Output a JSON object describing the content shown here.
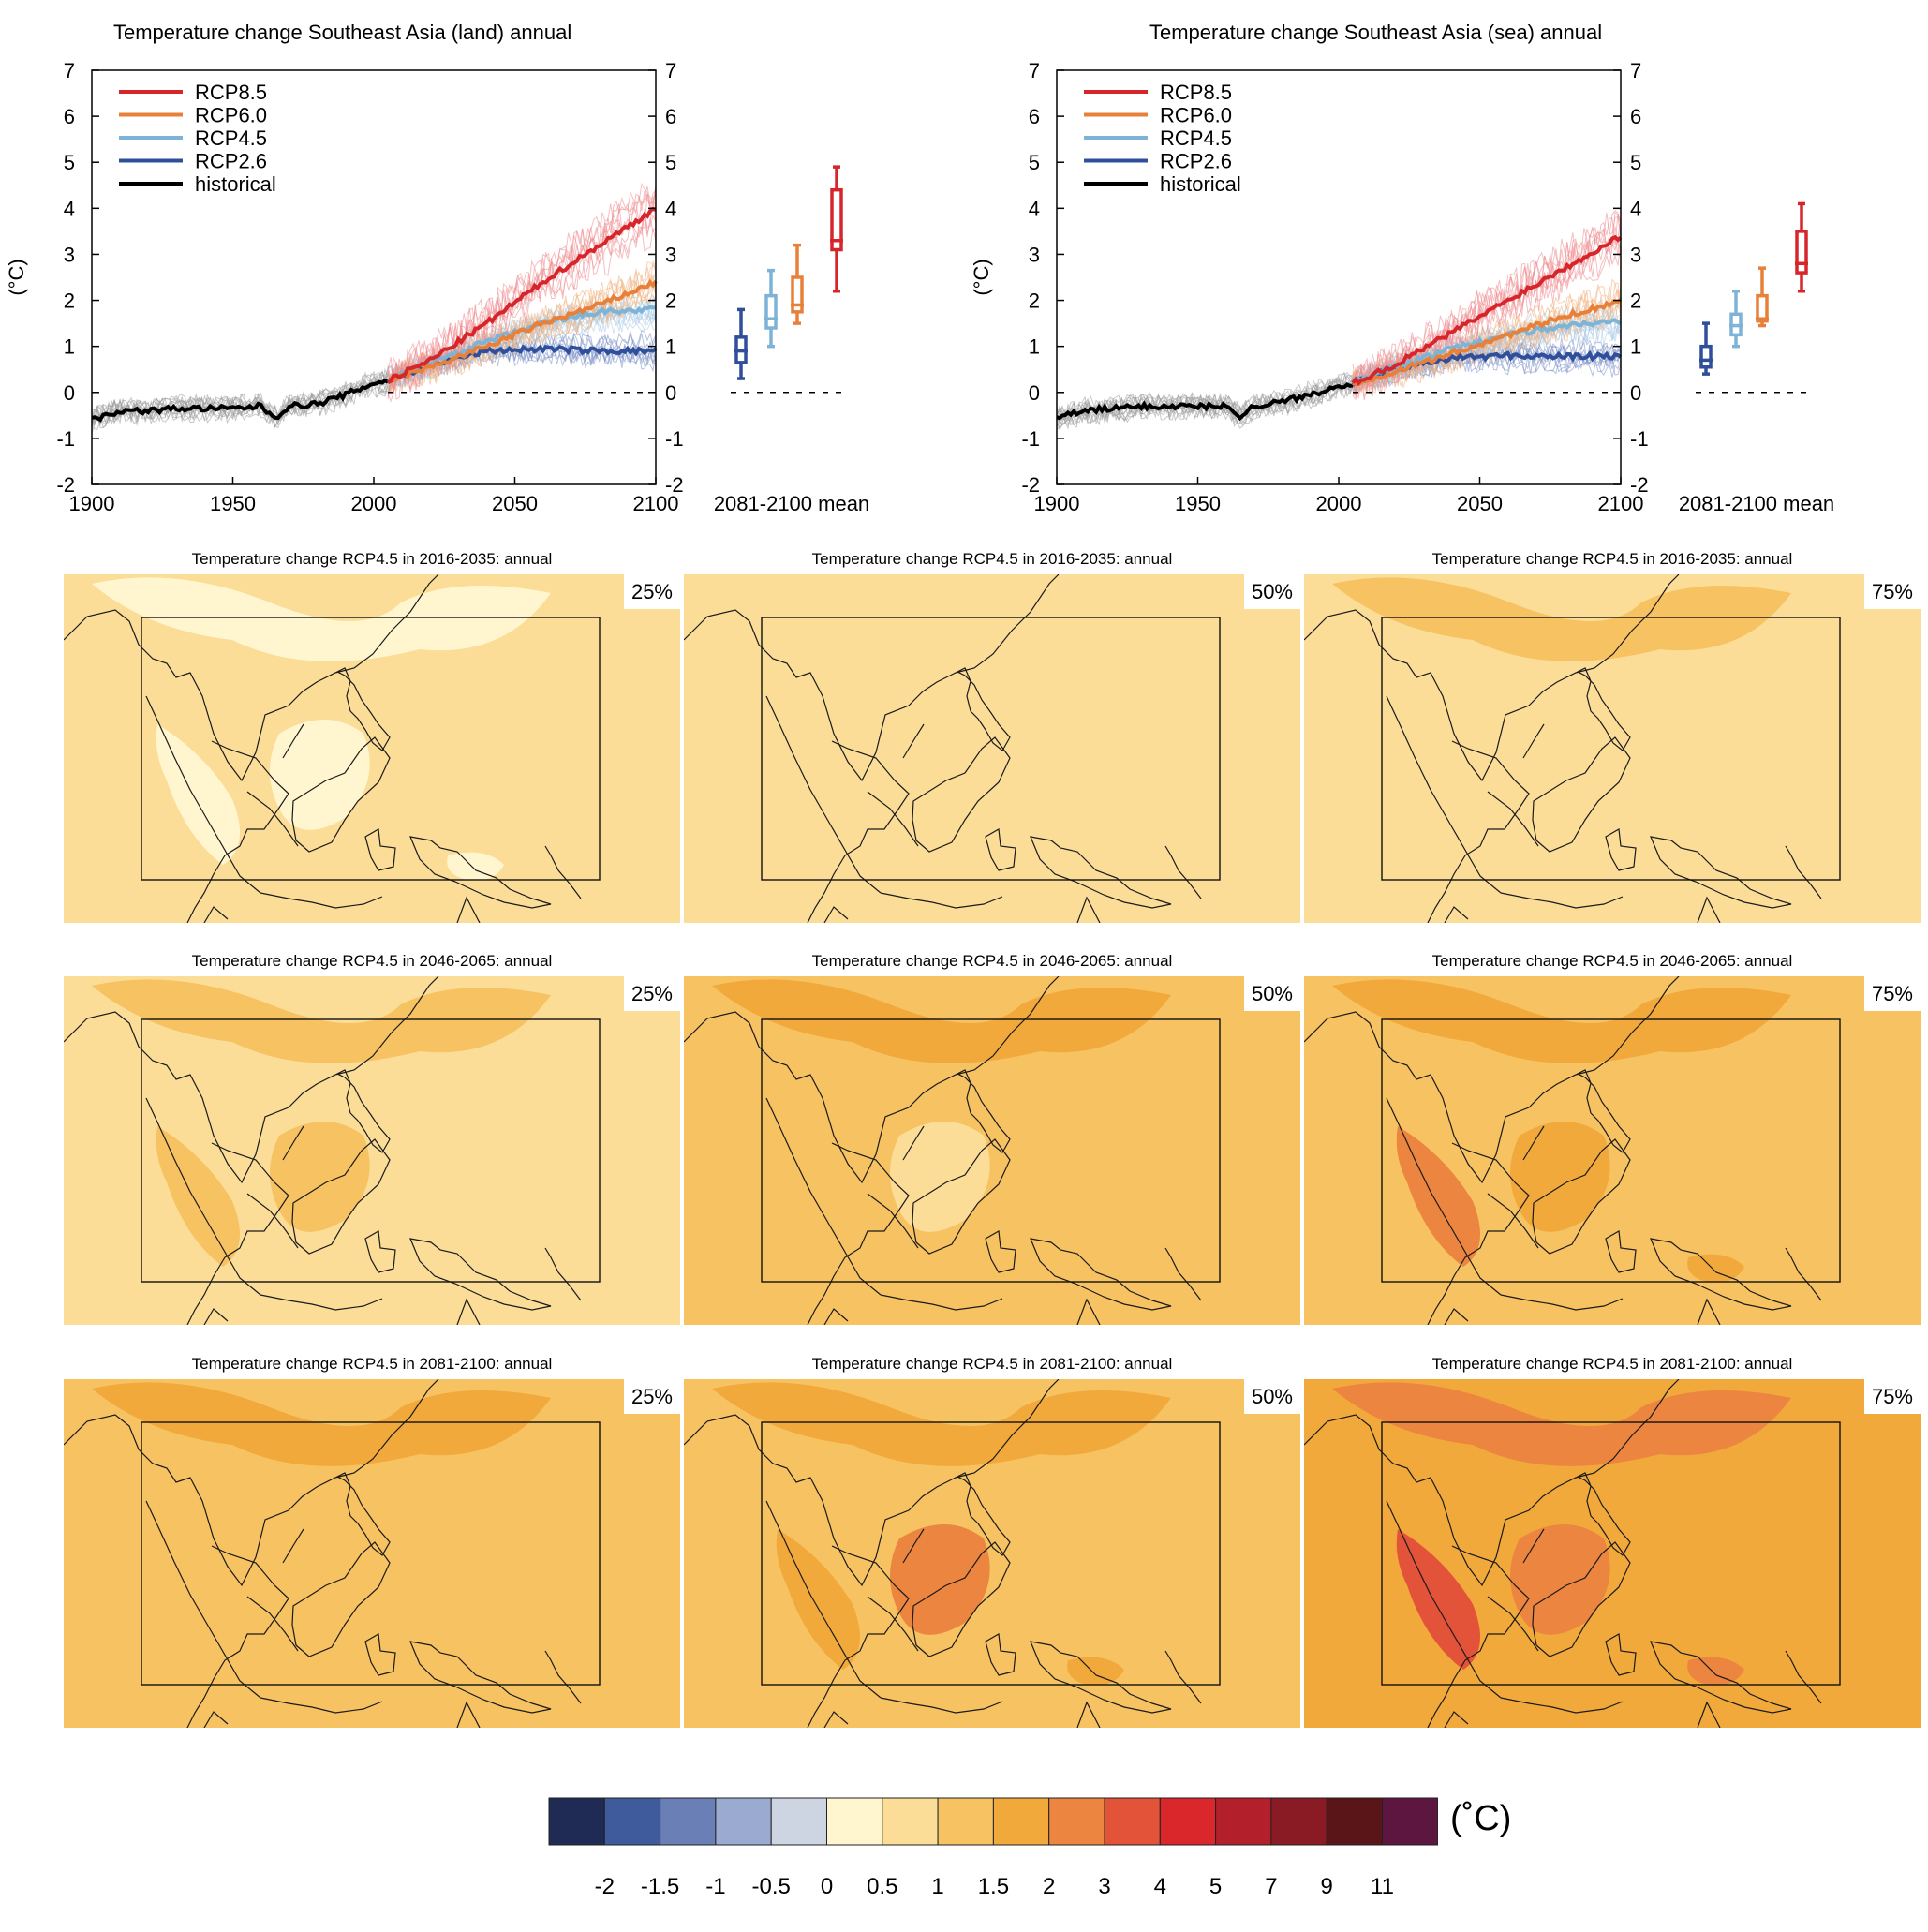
{
  "chart_data": [
    {
      "type": "line",
      "title": "Temperature change Southeast Asia (land) annual",
      "ylabel": "(°C)",
      "xlim": [
        1900,
        2100
      ],
      "ylim": [
        -2,
        7
      ],
      "xticks": [
        "1900",
        "1950",
        "2000",
        "2050",
        "2100"
      ],
      "yticks": [
        "-2",
        "-1",
        "0",
        "1",
        "2",
        "3",
        "4",
        "5",
        "6",
        "7"
      ],
      "legend": [
        "RCP8.5",
        "RCP6.0",
        "RCP4.5",
        "RCP2.6",
        "historical"
      ],
      "legend_position": "top-left",
      "colors": {
        "RCP8.5": "#d7262b",
        "RCP6.0": "#e8803a",
        "RCP4.5": "#7eb3d8",
        "RCP2.6": "#2f4f9a",
        "historical": "#000000"
      },
      "series": [
        {
          "name": "historical",
          "x": [
            1900,
            1910,
            1920,
            1930,
            1940,
            1950,
            1960,
            1965,
            1970,
            1980,
            1990,
            2000,
            2005
          ],
          "values": [
            -0.6,
            -0.4,
            -0.4,
            -0.35,
            -0.35,
            -0.35,
            -0.3,
            -0.55,
            -0.3,
            -0.25,
            -0.05,
            0.2,
            0.25
          ]
        },
        {
          "name": "RCP8.5",
          "x": [
            2005,
            2020,
            2040,
            2060,
            2080,
            2100
          ],
          "values": [
            0.25,
            0.7,
            1.5,
            2.4,
            3.2,
            4.0
          ]
        },
        {
          "name": "RCP6.0",
          "x": [
            2005,
            2020,
            2040,
            2060,
            2080,
            2100
          ],
          "values": [
            0.25,
            0.55,
            1.0,
            1.5,
            1.9,
            2.4
          ]
        },
        {
          "name": "RCP4.5",
          "x": [
            2005,
            2020,
            2040,
            2060,
            2080,
            2100
          ],
          "values": [
            0.25,
            0.65,
            1.1,
            1.5,
            1.75,
            1.8
          ]
        },
        {
          "name": "RCP2.6",
          "x": [
            2005,
            2020,
            2040,
            2060,
            2080,
            2100
          ],
          "values": [
            0.25,
            0.6,
            0.9,
            0.95,
            0.9,
            0.9
          ]
        }
      ],
      "boxplot_label": "2081-2100 mean",
      "boxplots": [
        {
          "name": "RCP2.6",
          "min": 0.3,
          "q1": 0.65,
          "median": 0.9,
          "q3": 1.2,
          "max": 1.8
        },
        {
          "name": "RCP4.5",
          "min": 1.0,
          "q1": 1.4,
          "median": 1.6,
          "q3": 2.1,
          "max": 2.65
        },
        {
          "name": "RCP6.0",
          "min": 1.5,
          "q1": 1.75,
          "median": 1.9,
          "q3": 2.5,
          "max": 3.2
        },
        {
          "name": "RCP8.5",
          "min": 2.2,
          "q1": 3.1,
          "median": 3.3,
          "q3": 4.4,
          "max": 4.9
        }
      ]
    },
    {
      "type": "line",
      "title": "Temperature change Southeast Asia (sea) annual",
      "ylabel": "(°C)",
      "xlim": [
        1900,
        2100
      ],
      "ylim": [
        -2,
        7
      ],
      "xticks": [
        "1900",
        "1950",
        "2000",
        "2050",
        "2100"
      ],
      "yticks": [
        "-2",
        "-1",
        "0",
        "1",
        "2",
        "3",
        "4",
        "5",
        "6",
        "7"
      ],
      "legend": [
        "RCP8.5",
        "RCP6.0",
        "RCP4.5",
        "RCP2.6",
        "historical"
      ],
      "legend_position": "top-left",
      "colors": {
        "RCP8.5": "#d7262b",
        "RCP6.0": "#e8803a",
        "RCP4.5": "#7eb3d8",
        "RCP2.6": "#2f4f9a",
        "historical": "#000000"
      },
      "series": [
        {
          "name": "historical",
          "x": [
            1900,
            1910,
            1920,
            1930,
            1940,
            1950,
            1960,
            1965,
            1970,
            1980,
            1990,
            2000,
            2005
          ],
          "values": [
            -0.55,
            -0.4,
            -0.35,
            -0.3,
            -0.3,
            -0.3,
            -0.3,
            -0.5,
            -0.3,
            -0.2,
            -0.05,
            0.15,
            0.2
          ]
        },
        {
          "name": "RCP8.5",
          "x": [
            2005,
            2020,
            2040,
            2060,
            2080,
            2100
          ],
          "values": [
            0.2,
            0.6,
            1.3,
            2.0,
            2.7,
            3.4
          ]
        },
        {
          "name": "RCP6.0",
          "x": [
            2005,
            2020,
            2040,
            2060,
            2080,
            2100
          ],
          "values": [
            0.2,
            0.45,
            0.85,
            1.25,
            1.65,
            2.0
          ]
        },
        {
          "name": "RCP4.5",
          "x": [
            2005,
            2020,
            2040,
            2060,
            2080,
            2100
          ],
          "values": [
            0.2,
            0.55,
            0.95,
            1.25,
            1.45,
            1.55
          ]
        },
        {
          "name": "RCP2.6",
          "x": [
            2005,
            2020,
            2040,
            2060,
            2080,
            2100
          ],
          "values": [
            0.2,
            0.5,
            0.75,
            0.8,
            0.78,
            0.78
          ]
        }
      ],
      "boxplot_label": "2081-2100 mean",
      "boxplots": [
        {
          "name": "RCP2.6",
          "min": 0.4,
          "q1": 0.55,
          "median": 0.7,
          "q3": 1.0,
          "max": 1.5
        },
        {
          "name": "RCP4.5",
          "min": 1.0,
          "q1": 1.25,
          "median": 1.45,
          "q3": 1.7,
          "max": 2.2
        },
        {
          "name": "RCP6.0",
          "min": 1.45,
          "q1": 1.55,
          "median": 1.6,
          "q3": 2.1,
          "max": 2.7
        },
        {
          "name": "RCP8.5",
          "min": 2.2,
          "q1": 2.6,
          "median": 2.8,
          "q3": 3.5,
          "max": 4.1
        }
      ]
    },
    {
      "type": "heatmap",
      "colorbar": {
        "unit": "(˚C)",
        "ticks": [
          "-2",
          "-1.5",
          "-1",
          "-0.5",
          "0",
          "0.5",
          "1",
          "1.5",
          "2",
          "3",
          "4",
          "5",
          "7",
          "9",
          "11"
        ],
        "colors": [
          "#1f2a55",
          "#3f5b9c",
          "#6a7fb5",
          "#9aaad0",
          "#cdd5e3",
          "#fff6d0",
          "#fbdd98",
          "#f7c262",
          "#f2a93b",
          "#eb8540",
          "#e2533a",
          "#d9272c",
          "#b41f2c",
          "#8a1b25",
          "#5a1518",
          "#5c1640"
        ]
      },
      "maps": [
        {
          "title": "Temperature change RCP4.5 in 2016-2035: annual",
          "percentile": "25%",
          "base": 6,
          "blobs": [
            5,
            5,
            5,
            5
          ]
        },
        {
          "title": "Temperature change RCP4.5 in 2016-2035: annual",
          "percentile": "50%",
          "base": 6,
          "blobs": []
        },
        {
          "title": "Temperature change RCP4.5 in 2016-2035: annual",
          "percentile": "75%",
          "base": 6,
          "blobs": [
            7
          ]
        },
        {
          "title": "Temperature change RCP4.5 in 2046-2065: annual",
          "percentile": "25%",
          "base": 6,
          "blobs": [
            7,
            7,
            7
          ]
        },
        {
          "title": "Temperature change RCP4.5 in 2046-2065: annual",
          "percentile": "50%",
          "base": 7,
          "blobs": [
            8,
            6
          ]
        },
        {
          "title": "Temperature change RCP4.5 in 2046-2065: annual",
          "percentile": "75%",
          "base": 7,
          "blobs": [
            8,
            8,
            9,
            8
          ]
        },
        {
          "title": "Temperature change RCP4.5 in 2081-2100: annual",
          "percentile": "25%",
          "base": 7,
          "blobs": [
            8
          ]
        },
        {
          "title": "Temperature change RCP4.5 in 2081-2100: annual",
          "percentile": "50%",
          "base": 7,
          "blobs": [
            8,
            9,
            8,
            8
          ]
        },
        {
          "title": "Temperature change RCP4.5 in 2081-2100: annual",
          "percentile": "75%",
          "base": 8,
          "blobs": [
            9,
            9,
            10,
            9
          ]
        }
      ]
    }
  ]
}
